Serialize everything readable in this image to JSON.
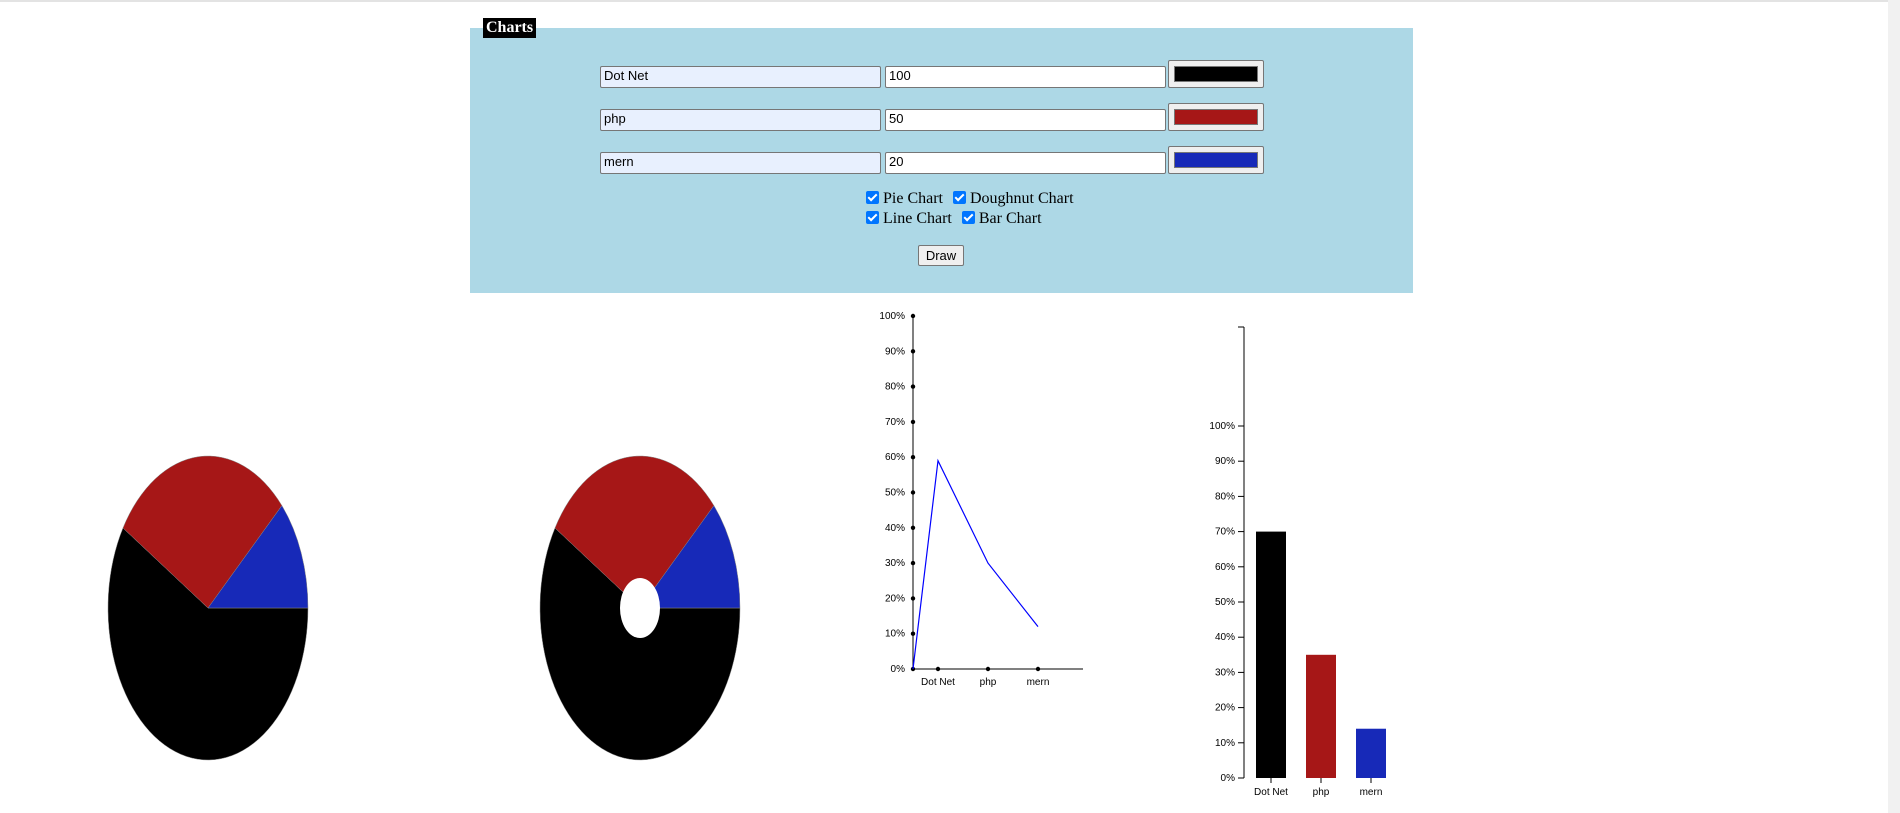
{
  "form": {
    "legend": "Charts",
    "rows": [
      {
        "name": "Dot Net",
        "value": "100",
        "color": "#000000"
      },
      {
        "name": "php",
        "value": "50",
        "color": "#a61717"
      },
      {
        "name": "mern",
        "value": "20",
        "color": "#1729b8"
      }
    ],
    "checkboxes": [
      {
        "label": "Pie Chart",
        "checked": true
      },
      {
        "label": "Doughnut Chart",
        "checked": true
      },
      {
        "label": "Line Chart",
        "checked": true
      },
      {
        "label": "Bar Chart",
        "checked": true
      }
    ],
    "draw_label": "Draw"
  },
  "chart_data": [
    {
      "type": "pie",
      "labels": [
        "Dot Net",
        "php",
        "mern"
      ],
      "values": [
        100,
        50,
        20
      ],
      "colors": [
        "#000000",
        "#a61717",
        "#1729b8"
      ]
    },
    {
      "type": "doughnut",
      "labels": [
        "Dot Net",
        "php",
        "mern"
      ],
      "values": [
        100,
        50,
        20
      ],
      "colors": [
        "#000000",
        "#a61717",
        "#1729b8"
      ]
    },
    {
      "type": "line",
      "categories": [
        "Dot Net",
        "php",
        "mern"
      ],
      "values": [
        59,
        30,
        12
      ],
      "y_ticks": [
        "0%",
        "10%",
        "20%",
        "30%",
        "40%",
        "50%",
        "60%",
        "70%",
        "80%",
        "90%",
        "100%"
      ],
      "ylim": [
        0,
        100
      ],
      "color": "#0000ff"
    },
    {
      "type": "bar",
      "categories": [
        "Dot Net",
        "php",
        "mern"
      ],
      "values": [
        70,
        35,
        14
      ],
      "colors": [
        "#000000",
        "#a61717",
        "#1729b8"
      ],
      "y_ticks": [
        "0%",
        "10%",
        "20%",
        "30%",
        "40%",
        "50%",
        "60%",
        "70%",
        "80%",
        "90%",
        "100%"
      ],
      "ylim": [
        0,
        100
      ]
    }
  ]
}
